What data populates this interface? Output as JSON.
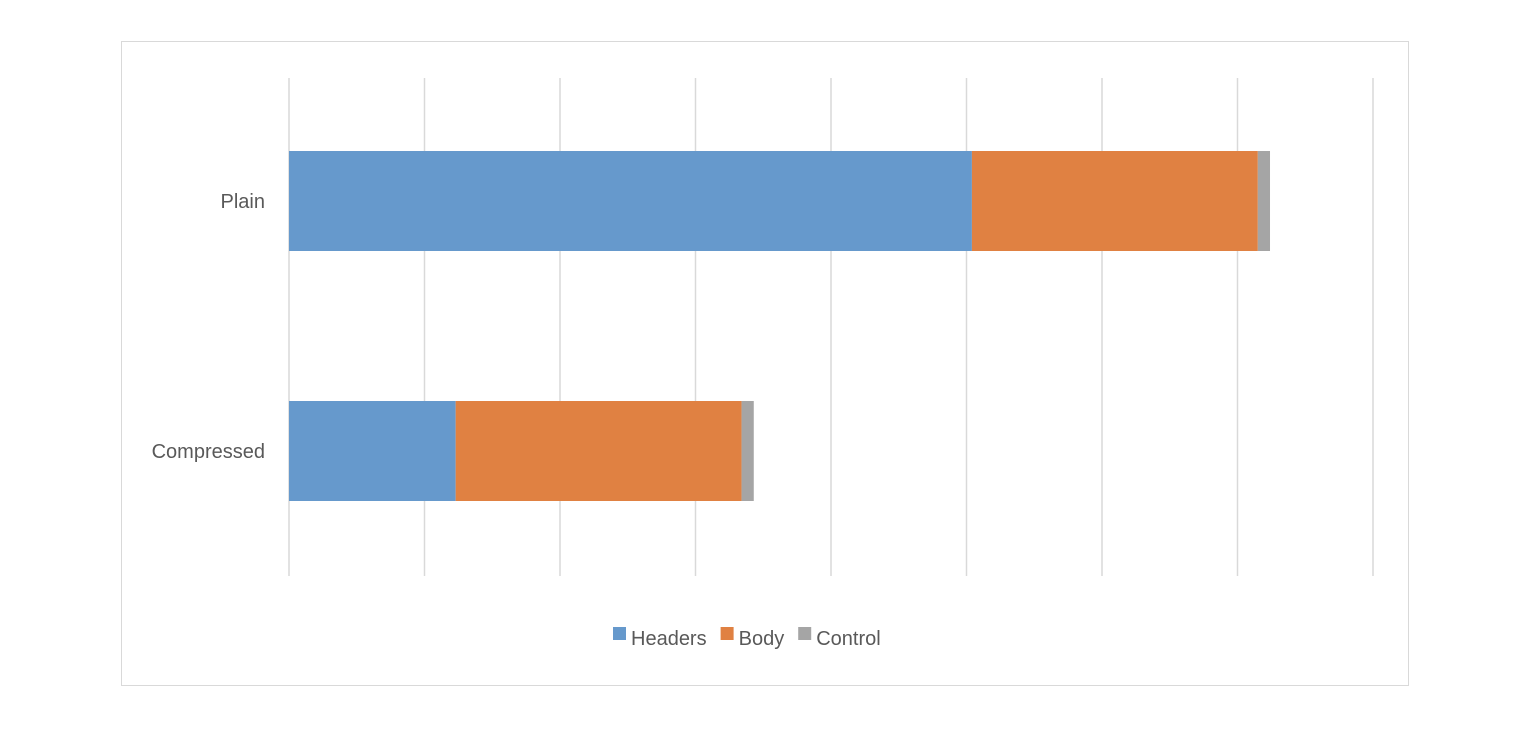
{
  "chart_data": {
    "type": "bar",
    "orientation": "horizontal",
    "stacked": true,
    "title": "",
    "xlabel": "",
    "ylabel": "",
    "categories": [
      "Plain",
      "Compressed"
    ],
    "series": [
      {
        "name": "Headers",
        "color": "#6699CC",
        "values": [
          50.4,
          12.3
        ]
      },
      {
        "name": "Body",
        "color": "#E08142",
        "values": [
          21.1,
          21.1
        ]
      },
      {
        "name": "Control",
        "color": "#A5A5A5",
        "values": [
          0.9,
          0.9
        ]
      }
    ],
    "xlim": [
      0,
      80
    ],
    "x_gridlines": [
      0,
      10,
      20,
      30,
      40,
      50,
      60,
      70,
      80
    ],
    "x_tick_labels_visible": false,
    "grid": true,
    "legend_position": "bottom"
  }
}
